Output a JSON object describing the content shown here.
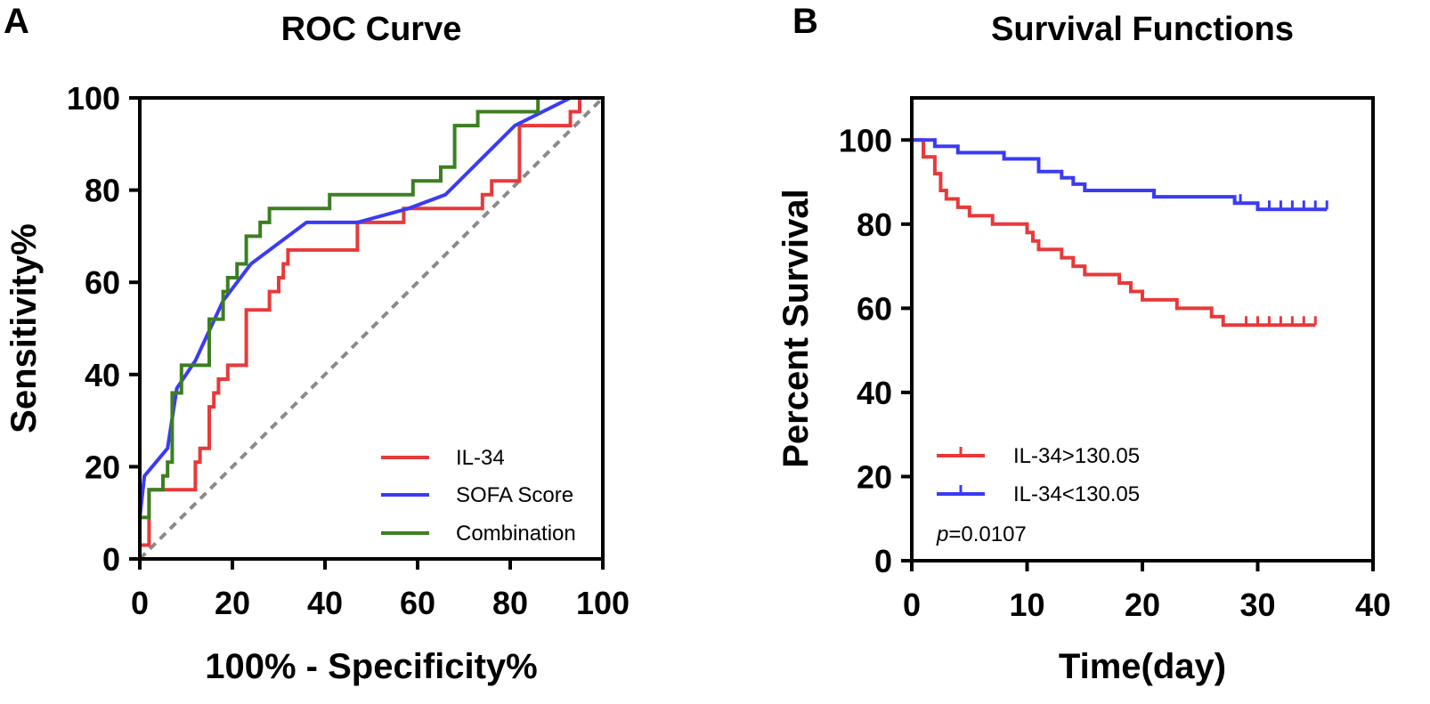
{
  "panels": {
    "a_letter": "A",
    "b_letter": "B"
  },
  "chart_data": [
    {
      "type": "line",
      "title": "ROC Curve",
      "xlabel": "100% - Specificity%",
      "ylabel": "Sensitivity%",
      "xlim": [
        0,
        100
      ],
      "ylim": [
        0,
        100
      ],
      "xticks": [
        "0",
        "20",
        "40",
        "60",
        "80",
        "100"
      ],
      "yticks": [
        "0",
        "20",
        "40",
        "60",
        "80",
        "100"
      ],
      "legend_position": "bottom-right",
      "colors": {
        "il34": "#e8393a",
        "sofa": "#3a3bf4",
        "combination": "#3c7f21",
        "reference": "#8a8a8a"
      },
      "series": [
        {
          "name": "IL-34",
          "key": "il34",
          "points": [
            [
              0,
              0
            ],
            [
              0,
              3
            ],
            [
              2,
              3
            ],
            [
              2,
              15
            ],
            [
              12,
              15
            ],
            [
              12,
              21
            ],
            [
              13,
              21
            ],
            [
              13,
              24
            ],
            [
              15,
              24
            ],
            [
              15,
              33
            ],
            [
              16,
              33
            ],
            [
              16,
              36
            ],
            [
              17,
              36
            ],
            [
              17,
              39
            ],
            [
              19,
              39
            ],
            [
              19,
              42
            ],
            [
              23,
              42
            ],
            [
              23,
              54
            ],
            [
              28,
              54
            ],
            [
              28,
              58
            ],
            [
              30,
              58
            ],
            [
              30,
              61
            ],
            [
              31,
              61
            ],
            [
              31,
              64
            ],
            [
              32,
              64
            ],
            [
              32,
              67
            ],
            [
              47,
              67
            ],
            [
              47,
              73
            ],
            [
              57,
              73
            ],
            [
              57,
              76
            ],
            [
              74,
              76
            ],
            [
              74,
              79
            ],
            [
              76,
              79
            ],
            [
              76,
              82
            ],
            [
              82,
              82
            ],
            [
              82,
              94
            ],
            [
              93,
              94
            ],
            [
              93,
              97
            ],
            [
              95,
              97
            ],
            [
              95,
              100
            ],
            [
              100,
              100
            ]
          ]
        },
        {
          "name": "SOFA Score",
          "key": "sofa",
          "points": [
            [
              0,
              9
            ],
            [
              1,
              18
            ],
            [
              6,
              24
            ],
            [
              8,
              37
            ],
            [
              12,
              43
            ],
            [
              18,
              56
            ],
            [
              24,
              64
            ],
            [
              36,
              73
            ],
            [
              47,
              73
            ],
            [
              58,
              76
            ],
            [
              66,
              79
            ],
            [
              75,
              88
            ],
            [
              81,
              94
            ],
            [
              93,
              100
            ],
            [
              100,
              100
            ]
          ]
        },
        {
          "name": "Combination",
          "key": "combination",
          "points": [
            [
              0,
              0
            ],
            [
              0,
              9
            ],
            [
              2,
              9
            ],
            [
              2,
              15
            ],
            [
              5,
              15
            ],
            [
              5,
              18
            ],
            [
              6,
              18
            ],
            [
              6,
              21
            ],
            [
              7,
              21
            ],
            [
              7,
              36
            ],
            [
              9,
              36
            ],
            [
              9,
              42
            ],
            [
              15,
              42
            ],
            [
              15,
              52
            ],
            [
              18,
              52
            ],
            [
              18,
              58
            ],
            [
              19,
              58
            ],
            [
              19,
              61
            ],
            [
              21,
              61
            ],
            [
              21,
              64
            ],
            [
              23,
              64
            ],
            [
              23,
              70
            ],
            [
              26,
              70
            ],
            [
              26,
              73
            ],
            [
              28,
              73
            ],
            [
              28,
              76
            ],
            [
              41,
              76
            ],
            [
              41,
              79
            ],
            [
              59,
              79
            ],
            [
              59,
              82
            ],
            [
              65,
              82
            ],
            [
              65,
              85
            ],
            [
              68,
              85
            ],
            [
              68,
              94
            ],
            [
              73,
              94
            ],
            [
              73,
              97
            ],
            [
              86,
              97
            ],
            [
              86,
              100
            ],
            [
              100,
              100
            ]
          ]
        },
        {
          "name": "Reference",
          "key": "reference",
          "points": [
            [
              0,
              0
            ],
            [
              100,
              100
            ]
          ]
        }
      ],
      "legend": [
        "IL-34",
        "SOFA Score",
        "Combination"
      ]
    },
    {
      "type": "line",
      "title": "Survival Functions",
      "xlabel": "Time(day)",
      "ylabel": "Percent Survival",
      "xlim": [
        0,
        40
      ],
      "ylim": [
        0,
        110
      ],
      "xticks": [
        "0",
        "10",
        "20",
        "30",
        "40"
      ],
      "yticks": [
        "0",
        "20",
        "40",
        "60",
        "80",
        "100"
      ],
      "legend_position": "bottom-left",
      "annotation_italic": "p",
      "annotation_rest": "=0.0107",
      "colors": {
        "high": "#e8393a",
        "low": "#3a3bf4"
      },
      "series": [
        {
          "name": "IL-34>130.05",
          "key": "high",
          "steps": [
            [
              0,
              100
            ],
            [
              1,
              96
            ],
            [
              2,
              92
            ],
            [
              2.5,
              88
            ],
            [
              3,
              86
            ],
            [
              4,
              84
            ],
            [
              5,
              82
            ],
            [
              7,
              80
            ],
            [
              10,
              78
            ],
            [
              10.5,
              76
            ],
            [
              11,
              74
            ],
            [
              13,
              72
            ],
            [
              14,
              70
            ],
            [
              15,
              68
            ],
            [
              18,
              66
            ],
            [
              19,
              64
            ],
            [
              20,
              62
            ],
            [
              23,
              60
            ],
            [
              26,
              58
            ],
            [
              27,
              56
            ],
            [
              35,
              56
            ]
          ],
          "censor_x": [
            29,
            30,
            31,
            32,
            33,
            34,
            35
          ]
        },
        {
          "name": "IL-34<130.05",
          "key": "low",
          "steps": [
            [
              0,
              100
            ],
            [
              2,
              98.5
            ],
            [
              4,
              97
            ],
            [
              8,
              95.5
            ],
            [
              11,
              92.5
            ],
            [
              13,
              91
            ],
            [
              14,
              89.5
            ],
            [
              15,
              88
            ],
            [
              21,
              86.5
            ],
            [
              28,
              85
            ],
            [
              30,
              83.5
            ],
            [
              36,
              83.5
            ]
          ],
          "censor_x": [
            28.5,
            31,
            32,
            33,
            34,
            35,
            36
          ]
        }
      ],
      "legend": [
        "IL-34>130.05",
        "IL-34<130.05"
      ]
    }
  ]
}
